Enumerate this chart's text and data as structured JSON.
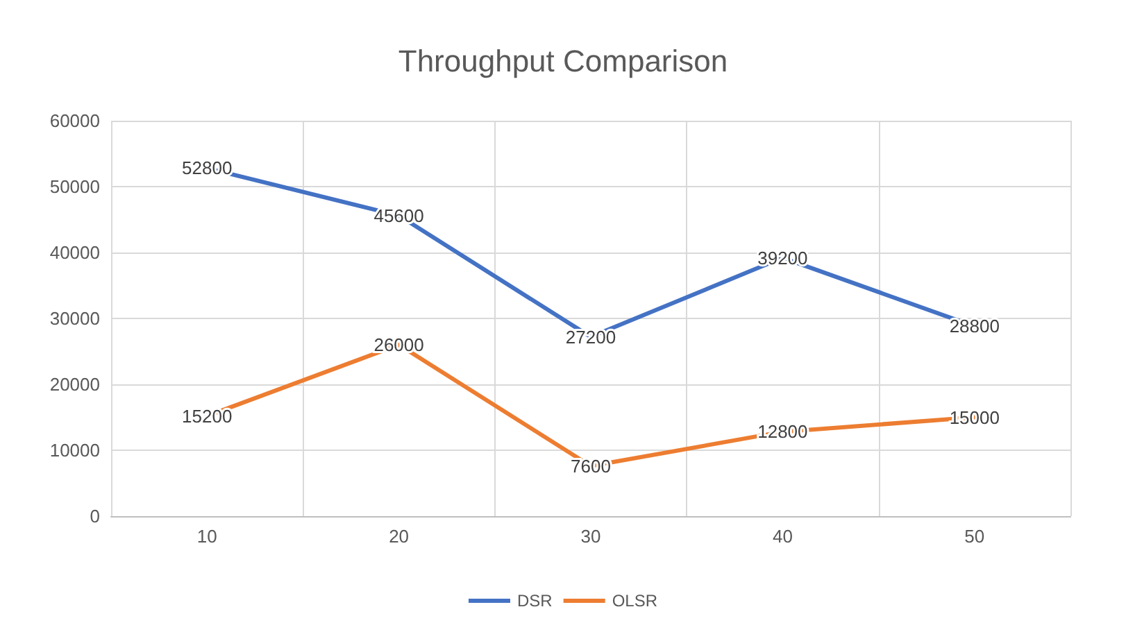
{
  "chart_data": {
    "type": "line",
    "title": "Throughput Comparison",
    "categories": [
      "10",
      "20",
      "30",
      "40",
      "50"
    ],
    "series": [
      {
        "name": "DSR",
        "color": "#4472c4",
        "values": [
          52800,
          45600,
          27200,
          39200,
          28800
        ]
      },
      {
        "name": "OLSR",
        "color": "#ed7d31",
        "values": [
          15200,
          26000,
          7600,
          12800,
          15000
        ]
      }
    ],
    "ylim": [
      0,
      60000
    ],
    "yticks": [
      0,
      10000,
      20000,
      30000,
      40000,
      50000,
      60000
    ],
    "grid": true,
    "legend": "bottom",
    "data_labels": true,
    "marker": "none",
    "line_style": "solid"
  }
}
